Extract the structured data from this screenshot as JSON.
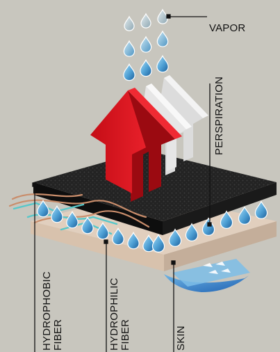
{
  "labels": {
    "vapor": "VAPOR",
    "perspiration": "PERSPIRATION",
    "hydrophobic_line1": "HYDROPHOBIC",
    "hydrophobic_line2": "FIBER",
    "hydrophilic_line1": "HYDROPHILIC",
    "hydrophilic_line2": "FIBER",
    "skin": "SKIN"
  },
  "colors": {
    "background": "#c8c6be",
    "arrow_front": "#d9111c",
    "arrow_back": "#e2e2e2",
    "fabric_top": "#222222",
    "fabric_side": "#141414",
    "skin_layer": "#dbc6b2",
    "droplet": "#57a6d6",
    "vapor_droplet": "#a9bcc4",
    "hydrophobic_fiber": "#c98d6b",
    "hydrophilic_fiber": "#57c7c9"
  }
}
